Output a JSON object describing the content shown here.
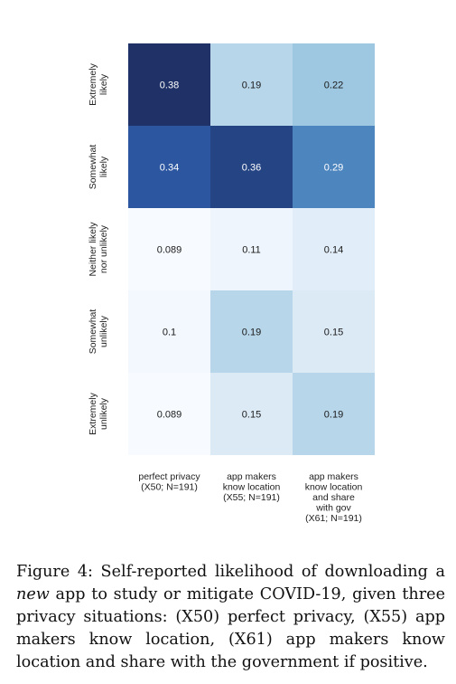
{
  "chart_data": {
    "type": "heatmap",
    "rows": [
      "Extremely likely",
      "Somewhat likely",
      "Neither likely nor unlikely",
      "Somewhat unlikely",
      "Extremely unlikely"
    ],
    "row_label_lines": [
      [
        "Extremely",
        "likely"
      ],
      [
        "Somewhat",
        "likely"
      ],
      [
        "Neither likely",
        "nor unlikely"
      ],
      [
        "Somewhat",
        "unlikely"
      ],
      [
        "Extremely",
        "unlikely"
      ]
    ],
    "columns": [
      "perfect privacy (X50; N=191)",
      "app makers know location (X55; N=191)",
      "app makers know location and share with gov (X61; N=191)"
    ],
    "column_label_lines": [
      [
        "perfect privacy",
        "(X50; N=191)"
      ],
      [
        "app makers",
        "know location",
        "(X55; N=191)"
      ],
      [
        "app makers",
        "know location",
        "and share",
        "with gov",
        "(X61; N=191)"
      ]
    ],
    "values": [
      [
        0.38,
        0.19,
        0.22
      ],
      [
        0.34,
        0.36,
        0.29
      ],
      [
        0.089,
        0.11,
        0.14
      ],
      [
        0.1,
        0.19,
        0.15
      ],
      [
        0.089,
        0.15,
        0.19
      ]
    ],
    "value_labels": [
      [
        "0.38",
        "0.19",
        "0.22"
      ],
      [
        "0.34",
        "0.36",
        "0.29"
      ],
      [
        "0.089",
        "0.11",
        "0.14"
      ],
      [
        "0.1",
        "0.19",
        "0.15"
      ],
      [
        "0.089",
        "0.15",
        "0.19"
      ]
    ],
    "colormap": "Blues",
    "color_range": [
      0.089,
      0.38
    ],
    "colors": {
      "low": "#f7fbff",
      "high": "#1f3167"
    }
  },
  "caption": {
    "label": "Figure 4:",
    "before_em": "Self-reported likelihood of downloading a",
    "em": "new",
    "after_em": "app to study or mitigate COVID-19, given three privacy situations: (X50) perfect privacy, (X55) app makers know location, (X61) app makers know location and share with the government if positive."
  }
}
